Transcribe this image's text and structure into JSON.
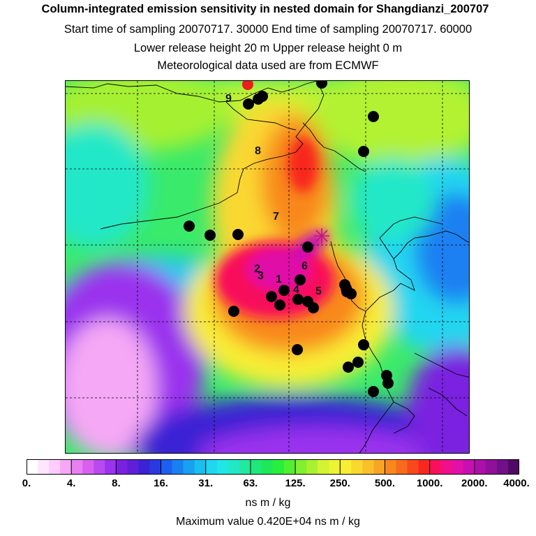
{
  "header": {
    "title": "Column-integrated emission sensitivity in nested domain for Shangdianzi_200707",
    "sampling": "Start time of sampling 20070717. 30000     End time of sampling 20070717. 60000",
    "release": "Lower release height   20 m          Upper release height    0 m",
    "met": "Meteorological data used are from ECMWF"
  },
  "colorbar": {
    "tick_labels": [
      "0.",
      "4.",
      "8.",
      "16.",
      "31.",
      "63.",
      "125.",
      "250.",
      "500.",
      "1000.",
      "2000.",
      "4000."
    ],
    "units": "ns m / kg",
    "colors": [
      "#ffffff",
      "#ffe6ff",
      "#ffccff",
      "#f5a8f5",
      "#e880f0",
      "#d860ee",
      "#b84af0",
      "#9a32ee",
      "#7a20e0",
      "#5f1ed8",
      "#3b22d4",
      "#2a3ae0",
      "#1d60f0",
      "#1a80f2",
      "#1aa0f0",
      "#18c0f0",
      "#20d6f0",
      "#20e6e6",
      "#22e8c8",
      "#22e8a2",
      "#1ee87a",
      "#1ee858",
      "#28ee3c",
      "#50f030",
      "#80f030",
      "#aaf030",
      "#d2f432",
      "#ecf434",
      "#f8ee34",
      "#fad830",
      "#fac02a",
      "#f8a424",
      "#f8881e",
      "#f86a1c",
      "#f8481c",
      "#f8281e",
      "#f8105a",
      "#f0108a",
      "#e010a8",
      "#c810b2",
      "#ac10a8",
      "#90109a",
      "#72108a",
      "#500a66"
    ]
  },
  "footer": {
    "max_value": "Maximum value  0.420E+04 ns m / kg"
  },
  "chart_data": {
    "type": "heatmap",
    "title": "Column-integrated emission sensitivity in nested domain for Shangdianzi_200707",
    "color_scale": "log",
    "levels": [
      0,
      4,
      8,
      16,
      31,
      63,
      125,
      250,
      500,
      1000,
      2000,
      4000
    ],
    "units": "ns m / kg",
    "max_value": 4200,
    "grid": true,
    "receptor_marker": "asterisk",
    "site_labels": [
      "9",
      "8",
      "7",
      "2",
      "3",
      "1",
      "6",
      "4",
      "5"
    ],
    "marker_colors": {
      "sites": "#000000",
      "highlight_site": "#ee1c1c",
      "receptor": "#c01878"
    }
  }
}
